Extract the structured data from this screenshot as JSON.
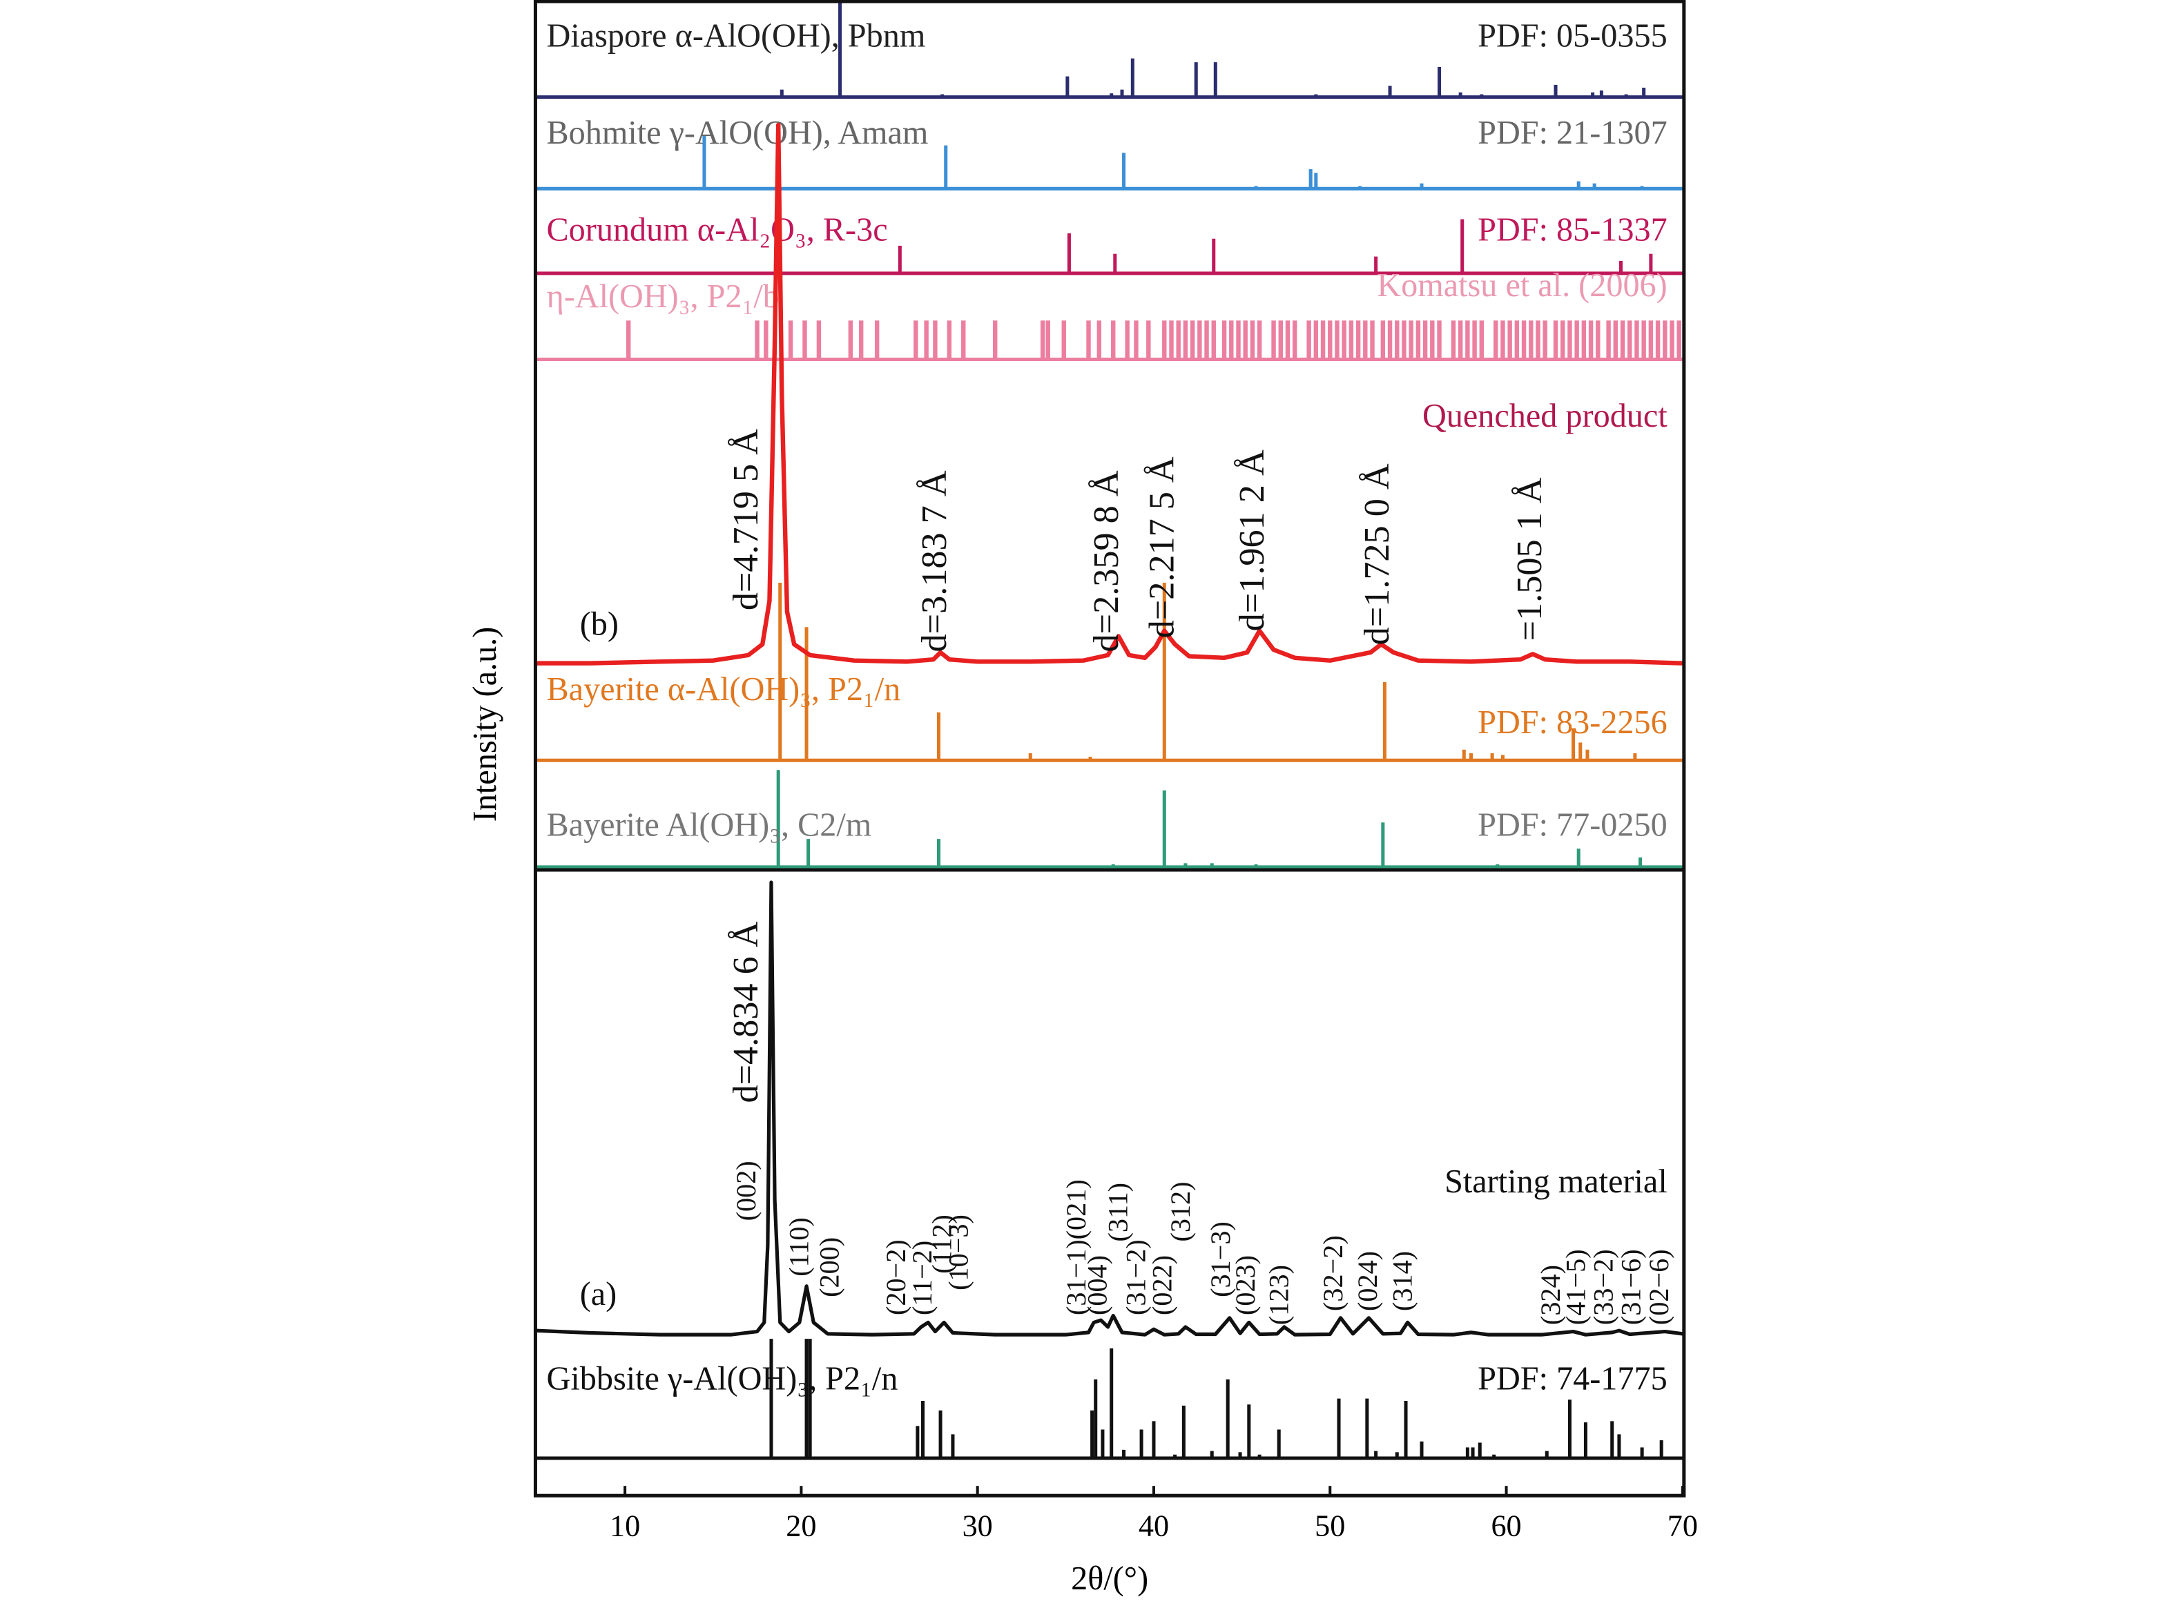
{
  "chart_data": {
    "type": "xrd",
    "xlabel": "2θ/(°)",
    "ylabel": "Intensity (a.u.)",
    "xlim": [
      5,
      70
    ],
    "xticks": [
      10,
      20,
      30,
      40,
      50,
      60,
      70
    ],
    "references": [
      {
        "name": "Diaspore α-AlO(OH), Pbnm",
        "source": "PDF: 05-0355",
        "color": "#2b2d6e",
        "label_color": "#222222",
        "peaks": [
          18.9,
          22.2,
          28.0,
          35.1,
          37.6,
          38.2,
          38.8,
          42.4,
          43.5,
          49.2,
          53.4,
          56.2,
          57.4,
          58.6,
          62.8,
          64.9,
          65.4,
          66.8,
          67.8
        ],
        "intensities": [
          8,
          100,
          3,
          22,
          4,
          8,
          41,
          37,
          37,
          3,
          12,
          32,
          5,
          3,
          13,
          5,
          7,
          3,
          10
        ]
      },
      {
        "name": "Bohmite γ-AlO(OH), Amam",
        "source": "PDF: 21-1307",
        "color": "#3a8fd6",
        "label_color": "#666666",
        "peaks": [
          14.5,
          28.2,
          38.3,
          45.8,
          48.9,
          49.2,
          51.7,
          55.2,
          60.6,
          64.1,
          65.0,
          67.7
        ],
        "intensities": [
          100,
          82,
          68,
          5,
          37,
          30,
          5,
          10,
          3,
          14,
          10,
          5
        ]
      },
      {
        "name": "Corundum α-Al₂O₃, R-3c",
        "source": "PDF: 85-1337",
        "color": "#c0185a",
        "label_color": "#c0185a",
        "peaks": [
          25.6,
          35.2,
          37.8,
          43.4,
          52.6,
          57.5,
          66.5,
          68.2
        ],
        "intensities": [
          51,
          74,
          36,
          64,
          31,
          100,
          23,
          36
        ]
      },
      {
        "name": "η-Al(OH)₃, P2₁/b",
        "source": "Komatsu et al. (2006)",
        "color": "#ec7fa0",
        "label_color": "#eb9ab2",
        "peaks": [
          10.2,
          17.5,
          18.0,
          19.4,
          20.2,
          21.0,
          22.8,
          23.4,
          24.3,
          26.5,
          27.1,
          27.6,
          28.4,
          29.2,
          31.0,
          33.7,
          34.0,
          34.9,
          36.3,
          36.9,
          37.7,
          38.5,
          39.0,
          39.7,
          40.6,
          41.0,
          41.4,
          41.8,
          42.2,
          42.6,
          43.0,
          43.4,
          44.0,
          44.4,
          44.8,
          45.2,
          45.6,
          46.0,
          46.8,
          47.2,
          47.6,
          48.0,
          48.8,
          49.2,
          49.6,
          50.0,
          50.4,
          50.8,
          51.2,
          51.6,
          52.0,
          52.4,
          53.0,
          53.4,
          53.8,
          54.2,
          54.6,
          55.0,
          55.4,
          55.8,
          56.2,
          57.0,
          57.4,
          57.8,
          58.2,
          58.6,
          59.4,
          59.8,
          60.2,
          60.6,
          61.0,
          61.4,
          61.8,
          62.2,
          62.8,
          63.2,
          63.6,
          64.0,
          64.4,
          64.8,
          65.2,
          65.8,
          66.2,
          66.6,
          67.0,
          67.4,
          67.8,
          68.2,
          68.6,
          69.0,
          69.4,
          69.8
        ],
        "intensities": [
          100,
          100,
          100,
          100,
          100,
          100,
          100,
          100,
          100,
          100,
          100,
          100,
          100,
          100,
          100,
          100,
          100,
          100,
          100,
          100,
          100,
          100,
          100,
          100,
          100,
          100,
          100,
          100,
          100,
          100,
          100,
          100,
          100,
          100,
          100,
          100,
          100,
          100,
          100,
          100,
          100,
          100,
          100,
          100,
          100,
          100,
          100,
          100,
          100,
          100,
          100,
          100,
          100,
          100,
          100,
          100,
          100,
          100,
          100,
          100,
          100,
          100,
          100,
          100,
          100,
          100,
          100,
          100,
          100,
          100,
          100,
          100,
          100,
          100,
          100,
          100,
          100,
          100,
          100,
          100,
          100,
          100,
          100,
          100,
          100,
          100,
          100,
          100,
          100,
          100,
          100,
          100
        ]
      },
      {
        "name": "Bayerite α-Al(OH)₃, P2₁/n",
        "source": "PDF: 83-2256",
        "color": "#e07820",
        "label_color": "#e07820",
        "peaks": [
          18.8,
          20.3,
          27.8,
          33.0,
          36.4,
          40.6,
          53.1,
          57.6,
          58.0,
          59.2,
          59.8,
          63.8,
          64.2,
          64.6,
          67.3
        ],
        "intensities": [
          100,
          75,
          27,
          4,
          2,
          100,
          44,
          6,
          4,
          4,
          3,
          18,
          10,
          6,
          4
        ]
      },
      {
        "name": "Bayerite Al(OH)₃, C2/m",
        "source": "PDF: 77-0250",
        "color": "#2e9a78",
        "label_color": "#777777",
        "peaks": [
          18.7,
          20.4,
          27.8,
          37.7,
          40.6,
          41.8,
          43.3,
          45.8,
          53.0,
          59.5,
          64.1,
          67.6
        ],
        "intensities": [
          100,
          29,
          29,
          3,
          79,
          4,
          4,
          3,
          46,
          3,
          19,
          10
        ]
      },
      {
        "name": "Gibbsite γ-Al(OH)₃, P2₁/n",
        "source": "PDF: 74-1775",
        "color": "#111111",
        "label_color": "#111111",
        "peaks": [
          18.3,
          20.3,
          20.5,
          26.6,
          26.9,
          27.9,
          28.6,
          36.5,
          36.7,
          37.1,
          37.6,
          38.3,
          39.3,
          40.0,
          41.2,
          41.7,
          43.3,
          44.2,
          44.9,
          45.4,
          46.0,
          47.1,
          50.5,
          52.1,
          52.6,
          53.8,
          54.3,
          55.2,
          57.8,
          58.1,
          58.5,
          59.3,
          62.3,
          63.6,
          64.5,
          66.0,
          66.4,
          67.7,
          68.8
        ],
        "intensities": [
          100,
          100,
          100,
          27,
          48,
          40,
          20,
          40,
          66,
          24,
          92,
          7,
          24,
          31,
          3,
          44,
          6,
          66,
          5,
          45,
          3,
          24,
          50,
          50,
          6,
          5,
          48,
          14,
          9,
          9,
          13,
          3,
          6,
          49,
          30,
          31,
          20,
          9,
          15
        ]
      }
    ],
    "measured": [
      {
        "label": "(b)",
        "name": "Quenched product",
        "color": "#e82020",
        "label_color": "#b0184e",
        "x": [
          5,
          8,
          12,
          15,
          17,
          17.8,
          18.2,
          18.5,
          18.7,
          18.9,
          19.2,
          19.6,
          20.5,
          23,
          26,
          27.5,
          27.9,
          28.4,
          30,
          33,
          36,
          37.4,
          38.0,
          38.6,
          39.5,
          40.1,
          40.6,
          41.2,
          42,
          44,
          45.3,
          46.0,
          46.8,
          48,
          50,
          52.3,
          52.9,
          53.6,
          55,
          58,
          60.8,
          61.5,
          62.2,
          64,
          67,
          70
        ],
        "y": [
          0.5,
          0.5,
          0.8,
          1,
          2,
          4,
          12,
          60,
          100,
          50,
          10,
          4,
          2,
          1,
          0.8,
          1.2,
          2.5,
          1.2,
          0.8,
          0.8,
          1,
          2,
          5.5,
          2,
          1.5,
          3.5,
          6.5,
          4,
          1.8,
          1.5,
          2.5,
          6.5,
          3,
          1.5,
          1,
          2.5,
          4,
          2.5,
          1,
          0.8,
          1.2,
          2.2,
          1.2,
          0.8,
          0.8,
          0.5
        ],
        "annotations": [
          "d=4.719 5 Å",
          "d=3.183 7 Å",
          "d=2.359 8 Å",
          "d=2.217 5 Å",
          "d=1.961 2 Å",
          "d=1.725 0 Å",
          "=1.505 1 Å"
        ]
      },
      {
        "label": "(a)",
        "name": "Starting material",
        "color": "#111111",
        "label_color": "#111111",
        "x": [
          5,
          8,
          12,
          16,
          17.5,
          17.9,
          18.1,
          18.3,
          18.5,
          18.8,
          19.3,
          19.9,
          20.3,
          20.7,
          21.5,
          24,
          26.4,
          26.8,
          27.2,
          27.6,
          28.1,
          28.6,
          31,
          35,
          36.3,
          36.6,
          37.0,
          37.4,
          37.7,
          38.2,
          39.5,
          40.0,
          40.6,
          41.4,
          41.8,
          42.4,
          43.5,
          44.3,
          44.9,
          45.4,
          46,
          47.0,
          47.4,
          48,
          50,
          50.6,
          51.3,
          52.2,
          53,
          54.0,
          54.4,
          55.0,
          57,
          58,
          59,
          62,
          63.8,
          64.5,
          66.0,
          66.4,
          67,
          69,
          70
        ],
        "y": [
          1.2,
          0.7,
          0.3,
          0.3,
          1,
          3,
          20,
          100,
          30,
          3,
          1,
          3,
          11,
          3,
          0.5,
          0.3,
          0.5,
          2,
          3,
          1,
          3,
          0.7,
          0.3,
          0.3,
          0.8,
          3,
          3.5,
          2,
          4.5,
          0.8,
          0.3,
          1.5,
          0.3,
          0.5,
          2,
          0.4,
          0.4,
          4,
          0.6,
          3,
          0.4,
          0.5,
          2,
          0.3,
          0.4,
          4,
          0.5,
          4,
          0.5,
          0.6,
          3,
          0.4,
          0.3,
          0.8,
          0.3,
          0.3,
          1,
          0.3,
          0.8,
          1.2,
          0.4,
          1,
          0.5
        ],
        "annotations": [
          "d=4.834 6 Å",
          "(002)",
          "(110)",
          "(200)",
          "(20−2)",
          "(11−2)",
          "(112)",
          "(10−3)",
          "(31−1)(021)",
          "(004)",
          "(311)",
          "(31−2)",
          "(022)",
          "(312)",
          "(31−3)",
          "(023)",
          "(123)",
          "(32−2)",
          "(024)",
          "(314)",
          "(324)",
          "(41−5)",
          "(33−2)",
          "(31−6)",
          "(02−6)"
        ]
      }
    ]
  }
}
